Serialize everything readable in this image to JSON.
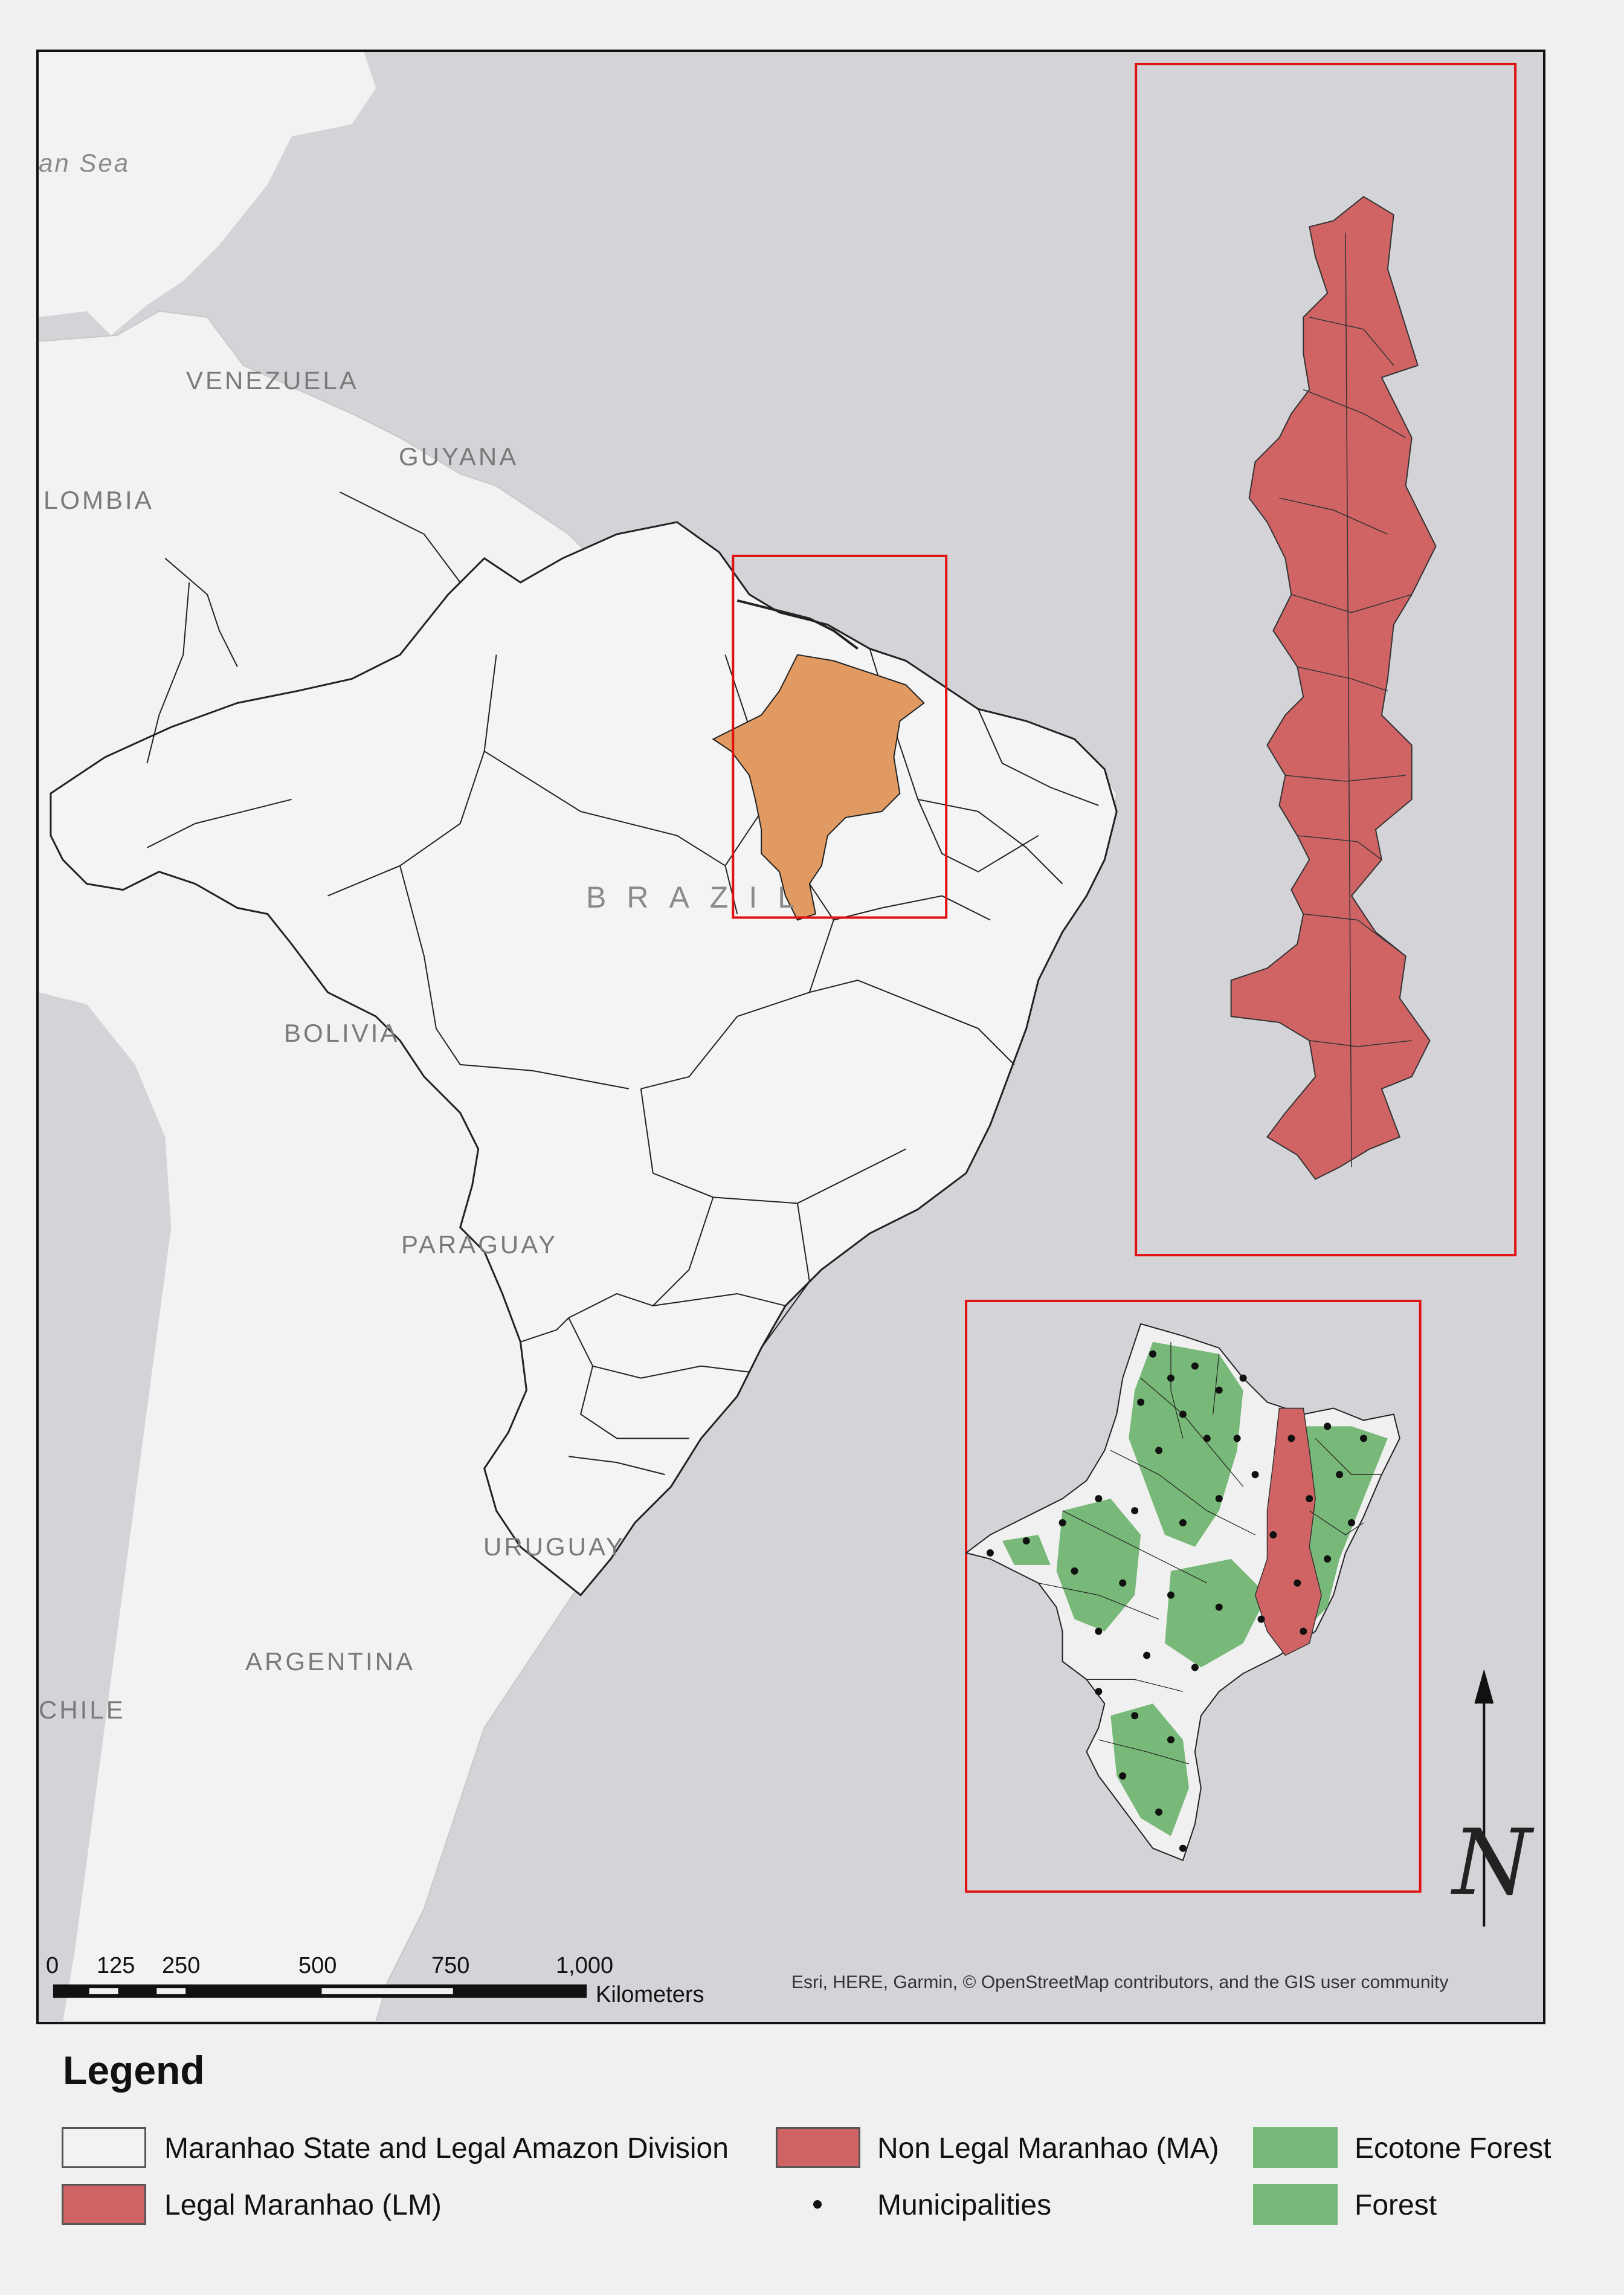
{
  "labels": {
    "sea": "an Sea",
    "venezuela": "VENEZUELA",
    "guyana": "GUYANA",
    "colombia": "LOMBIA",
    "brazil": "BRAZIL",
    "bolivia": "BOLIVIA",
    "paraguay": "PARAGUAY",
    "uruguay": "URUGUAY",
    "argentina": "ARGENTINA",
    "chile": "CHILE"
  },
  "scalebar": {
    "ticks": [
      "0",
      "125",
      "250",
      "500",
      "750",
      "1,000"
    ],
    "unit": "Kilometers"
  },
  "attribution": "Esri, HERE, Garmin, © OpenStreetMap contributors, and the GIS user community",
  "north_arrow_letter": "N",
  "legend": {
    "title": "Legend",
    "items": [
      {
        "label": "Maranhao State and Legal Amazon Division",
        "color": "#f2f2f2"
      },
      {
        "label": "Legal Maranhao (LM)",
        "color": "#d06464"
      },
      {
        "label": "Non Legal Maranhao (MA)",
        "color": "#d06464"
      },
      {
        "label": "Municipalities",
        "color": "#111111"
      },
      {
        "label": "Ecotone Forest",
        "color": "#78b878"
      },
      {
        "label": "Forest",
        "color": "#78b878"
      }
    ]
  },
  "colors": {
    "ocean": "#d3d3d8",
    "land": "#f2f2f2",
    "maranhao_highlight": "#e09a62",
    "red_zone": "#d06464",
    "inset_frame": "#e01010",
    "forest": "#78b878"
  }
}
